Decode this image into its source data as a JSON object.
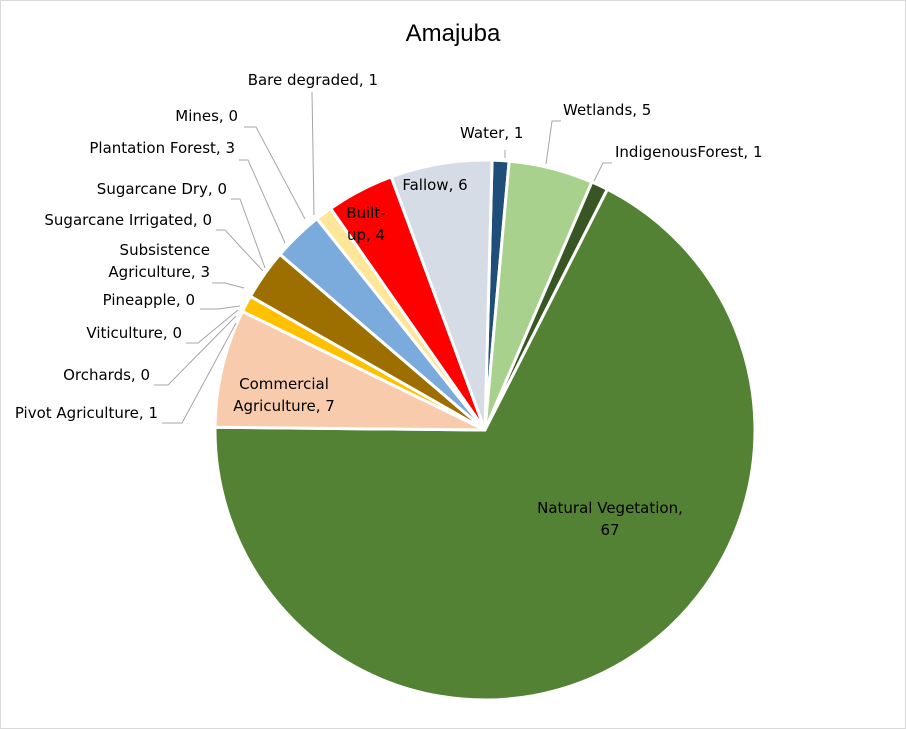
{
  "chart_data": {
    "type": "pie",
    "title": "Amajuba",
    "slices": [
      {
        "label": "Water",
        "value": 1,
        "display": "Water, 1",
        "color": "#1f4e79"
      },
      {
        "label": "Wetlands",
        "value": 5,
        "display": "Wetlands, 5",
        "color": "#a9d18e"
      },
      {
        "label": "IndigenousForest",
        "value": 1,
        "display": "IndigenousForest, 1",
        "color": "#375623"
      },
      {
        "label": "Natural Vegetation",
        "value": 67,
        "display": "Natural Vegetation, 67",
        "color": "#548235"
      },
      {
        "label": "Commercial Agriculture",
        "value": 7,
        "display": "Commercial Agriculture, 7",
        "color": "#f8cbad"
      },
      {
        "label": "Pivot  Agriculture",
        "value": 1,
        "display": "Pivot  Agriculture, 1",
        "color": "#ffc000"
      },
      {
        "label": "Orchards",
        "value": 0,
        "display": "Orchards, 0",
        "color": "#c55a11"
      },
      {
        "label": "Viticulture",
        "value": 0,
        "display": "Viticulture, 0",
        "color": "#7030a0"
      },
      {
        "label": "Pineapple",
        "value": 0,
        "display": "Pineapple, 0",
        "color": "#ffd966"
      },
      {
        "label": "Subsistence Agriculture",
        "value": 3,
        "display": "Subsistence Agriculture, 3",
        "color": "#9c6f00"
      },
      {
        "label": "Sugarcane Irrigated",
        "value": 0,
        "display": "Sugarcane Irrigated, 0",
        "color": "#00b0f0"
      },
      {
        "label": "Sugarcane Dry",
        "value": 0,
        "display": "Sugarcane Dry, 0",
        "color": "#92d050"
      },
      {
        "label": "Plantation Forest",
        "value": 3,
        "display": "Plantation Forest, 3",
        "color": "#7aabdc"
      },
      {
        "label": "Mines",
        "value": 0,
        "display": "Mines, 0",
        "color": "#a5a5a5"
      },
      {
        "label": "Bare degraded",
        "value": 1,
        "display": "Bare degraded, 1",
        "color": "#ffe699"
      },
      {
        "label": "Built-up",
        "value": 4,
        "display": "Built-up, 4",
        "color": "#ff0000"
      },
      {
        "label": "Fallow",
        "value": 6,
        "display": "Fallow, 6",
        "color": "#d6dce5"
      }
    ]
  }
}
